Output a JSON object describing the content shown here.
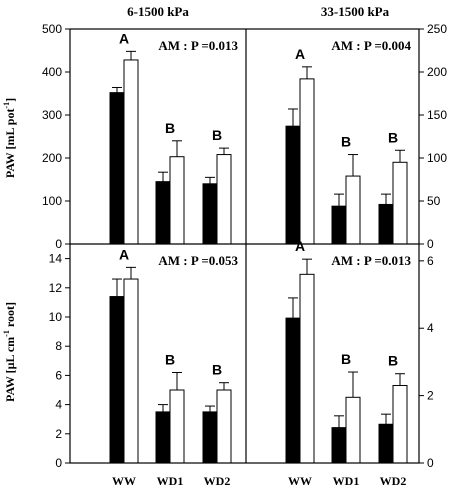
{
  "chart_data": [
    {
      "type": "bar",
      "panel": "top-left",
      "title": "6-1500 kPa",
      "ylabel": "PAW [mL pot-1]",
      "ylim": [
        0,
        500
      ],
      "yticks": [
        0,
        100,
        200,
        300,
        400,
        500
      ],
      "categories": [
        "WW",
        "WD1",
        "WD2"
      ],
      "series": [
        {
          "fill": "#000000",
          "values": [
            352,
            145,
            140
          ],
          "errors": [
            12,
            22,
            15
          ]
        },
        {
          "fill": "#ffffff",
          "values": [
            428,
            203,
            208
          ],
          "errors": [
            20,
            37,
            15
          ]
        }
      ],
      "letters": [
        "A",
        "B",
        "B"
      ],
      "annotation": "AM : P =0.013"
    },
    {
      "type": "bar",
      "panel": "top-right",
      "title": "33-1500 kPa",
      "ylim": [
        0,
        250
      ],
      "yticks": [
        0,
        50,
        100,
        150,
        200,
        250
      ],
      "categories": [
        "WW",
        "WD1",
        "WD2"
      ],
      "series": [
        {
          "fill": "#000000",
          "values": [
            137,
            44,
            46
          ],
          "errors": [
            20,
            14,
            12
          ]
        },
        {
          "fill": "#ffffff",
          "values": [
            192,
            79,
            95
          ],
          "errors": [
            14,
            25,
            14
          ]
        }
      ],
      "letters": [
        "A",
        "B",
        "B"
      ],
      "annotation": "AM : P =0.004"
    },
    {
      "type": "bar",
      "panel": "bottom-left",
      "ylabel": "PAW [µL cm-1 root]",
      "ylim": [
        0,
        15
      ],
      "yticks": [
        0,
        2,
        4,
        6,
        8,
        10,
        12,
        14
      ],
      "categories": [
        "WW",
        "WD1",
        "WD2"
      ],
      "series": [
        {
          "fill": "#000000",
          "values": [
            11.4,
            3.5,
            3.5
          ],
          "errors": [
            1.2,
            0.5,
            0.4
          ]
        },
        {
          "fill": "#ffffff",
          "values": [
            12.6,
            5.0,
            5.0
          ],
          "errors": [
            0.8,
            1.2,
            0.5
          ]
        }
      ],
      "letters": [
        "A",
        "B",
        "B"
      ],
      "annotation": "AM : P =0.053"
    },
    {
      "type": "bar",
      "panel": "bottom-right",
      "ylim": [
        0,
        6.5
      ],
      "yticks": [
        0,
        2,
        4,
        6
      ],
      "categories": [
        "WW",
        "WD1",
        "WD2"
      ],
      "series": [
        {
          "fill": "#000000",
          "values": [
            4.3,
            1.05,
            1.15
          ],
          "errors": [
            0.6,
            0.35,
            0.3
          ]
        },
        {
          "fill": "#ffffff",
          "values": [
            5.6,
            1.95,
            2.3
          ],
          "errors": [
            0.45,
            0.75,
            0.35
          ]
        }
      ],
      "letters": [
        "A",
        "B",
        "B"
      ],
      "annotation": "AM : P =0.013"
    }
  ]
}
